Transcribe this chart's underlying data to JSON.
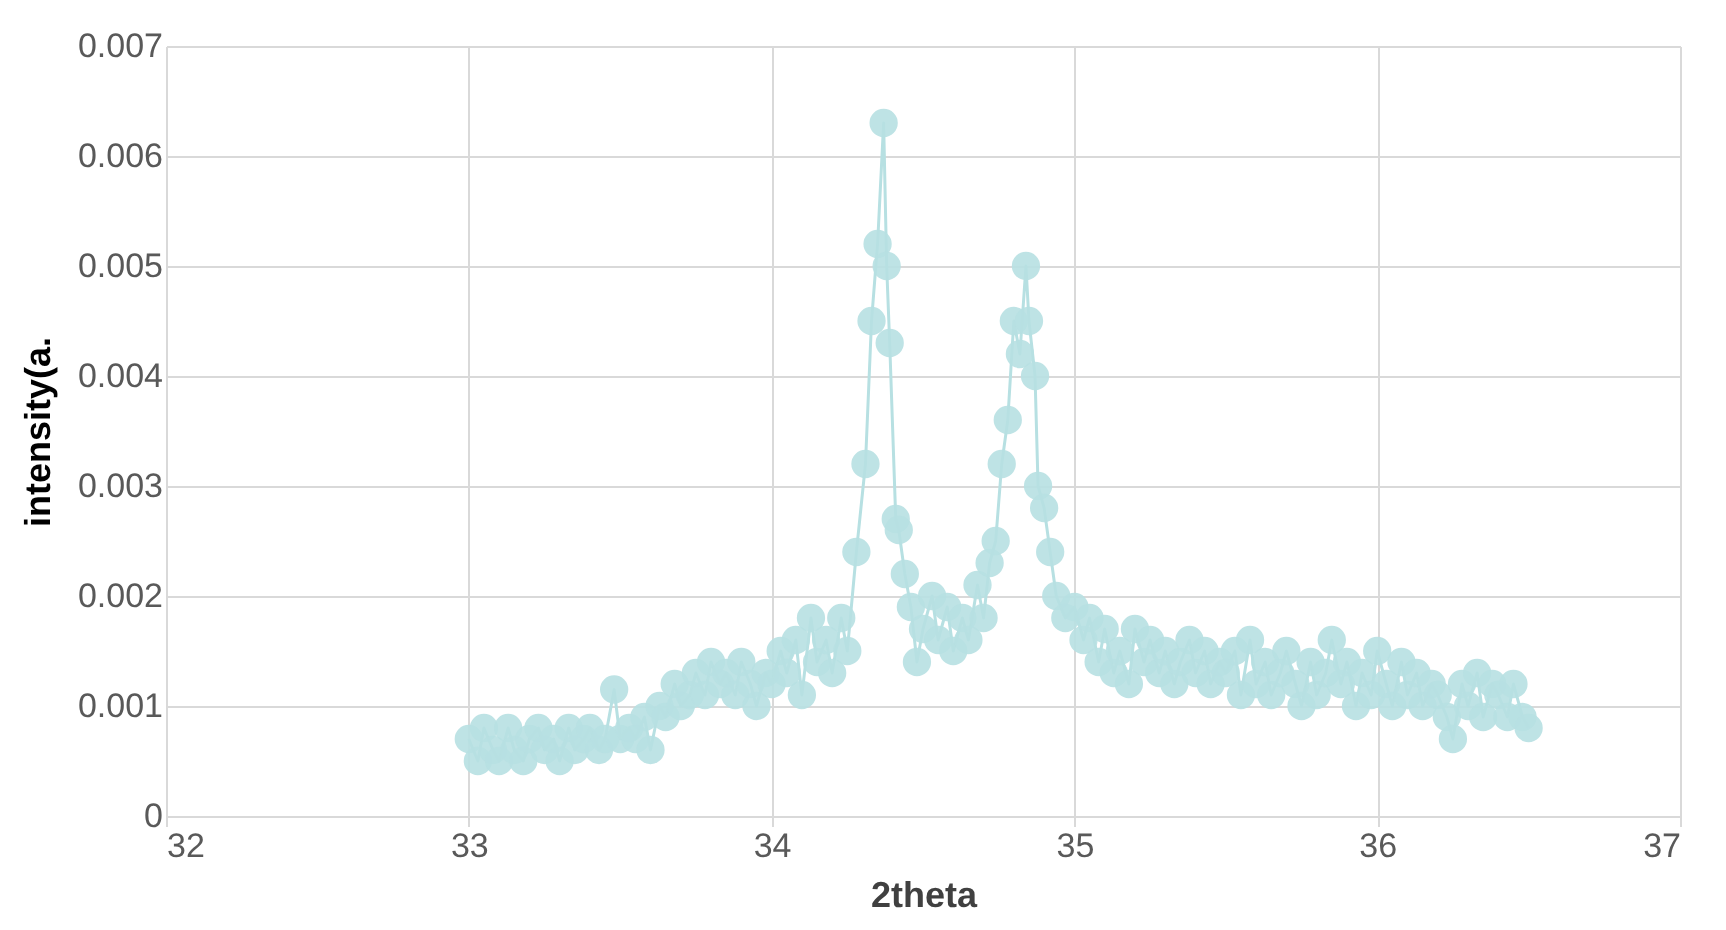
{
  "chart_data": {
    "type": "line",
    "xlabel": "2theta",
    "ylabel": "intensity(a.",
    "xlim": [
      32,
      37
    ],
    "xticks": [
      32,
      33,
      34,
      35,
      36,
      37
    ],
    "ylim": [
      0,
      0.007
    ],
    "yticks": [
      0,
      0.001,
      0.002,
      0.003,
      0.004,
      0.005,
      0.006,
      0.007
    ],
    "grid": true,
    "marker": "circle",
    "series": [
      {
        "color": "#b7e0e2",
        "x": [
          33.0,
          33.03,
          33.05,
          33.08,
          33.1,
          33.13,
          33.15,
          33.18,
          33.2,
          33.23,
          33.25,
          33.28,
          33.3,
          33.33,
          33.35,
          33.38,
          33.4,
          33.43,
          33.45,
          33.48,
          33.5,
          33.53,
          33.55,
          33.58,
          33.6,
          33.63,
          33.65,
          33.68,
          33.7,
          33.73,
          33.75,
          33.78,
          33.8,
          33.83,
          33.85,
          33.88,
          33.9,
          33.93,
          33.95,
          33.98,
          34.0,
          34.03,
          34.05,
          34.08,
          34.1,
          34.13,
          34.15,
          34.18,
          34.2,
          34.23,
          34.25,
          34.28,
          34.31,
          34.33,
          34.35,
          34.37,
          34.38,
          34.39,
          34.41,
          34.42,
          34.44,
          34.46,
          34.48,
          34.5,
          34.53,
          34.55,
          34.58,
          34.6,
          34.63,
          34.65,
          34.68,
          34.7,
          34.72,
          34.74,
          34.76,
          34.78,
          34.8,
          34.82,
          34.84,
          34.85,
          34.87,
          34.88,
          34.9,
          34.92,
          34.94,
          34.97,
          35.0,
          35.03,
          35.05,
          35.08,
          35.1,
          35.13,
          35.15,
          35.18,
          35.2,
          35.23,
          35.25,
          35.28,
          35.3,
          35.33,
          35.35,
          35.38,
          35.4,
          35.43,
          35.45,
          35.48,
          35.5,
          35.53,
          35.55,
          35.58,
          35.6,
          35.63,
          35.65,
          35.68,
          35.7,
          35.73,
          35.75,
          35.78,
          35.8,
          35.83,
          35.85,
          35.88,
          35.9,
          35.93,
          35.95,
          35.98,
          36.0,
          36.03,
          36.05,
          36.08,
          36.1,
          36.13,
          36.15,
          36.18,
          36.2,
          36.23,
          36.25,
          36.28,
          36.3,
          36.33,
          36.35,
          36.38,
          36.4,
          36.43,
          36.45,
          36.48,
          36.5
        ],
        "values": [
          0.0007,
          0.0005,
          0.0008,
          0.0006,
          0.0005,
          0.0008,
          0.0006,
          0.0005,
          0.0007,
          0.0008,
          0.0006,
          0.0007,
          0.0005,
          0.0008,
          0.0006,
          0.0007,
          0.0008,
          0.0006,
          0.0007,
          0.00115,
          0.0007,
          0.0008,
          0.0007,
          0.0009,
          0.0006,
          0.001,
          0.0009,
          0.0012,
          0.001,
          0.0011,
          0.0013,
          0.0011,
          0.0014,
          0.0012,
          0.0013,
          0.0011,
          0.0014,
          0.0012,
          0.001,
          0.0013,
          0.0012,
          0.0015,
          0.0013,
          0.0016,
          0.0011,
          0.0018,
          0.0014,
          0.0016,
          0.0013,
          0.0018,
          0.0015,
          0.0024,
          0.0032,
          0.0045,
          0.0052,
          0.0063,
          0.005,
          0.0043,
          0.0027,
          0.0026,
          0.0022,
          0.0019,
          0.0014,
          0.0017,
          0.002,
          0.0016,
          0.0019,
          0.0015,
          0.0018,
          0.0016,
          0.0021,
          0.0018,
          0.0023,
          0.0025,
          0.0032,
          0.0036,
          0.0045,
          0.0042,
          0.005,
          0.0045,
          0.004,
          0.003,
          0.0028,
          0.0024,
          0.002,
          0.0018,
          0.0019,
          0.0016,
          0.0018,
          0.0014,
          0.0017,
          0.0013,
          0.0015,
          0.0012,
          0.0017,
          0.0014,
          0.0016,
          0.0013,
          0.0015,
          0.0012,
          0.0014,
          0.0016,
          0.0013,
          0.0015,
          0.0012,
          0.0014,
          0.0013,
          0.0015,
          0.0011,
          0.0016,
          0.0012,
          0.0014,
          0.0011,
          0.0013,
          0.0015,
          0.0012,
          0.001,
          0.0014,
          0.0011,
          0.0013,
          0.0016,
          0.0012,
          0.0014,
          0.001,
          0.0013,
          0.0011,
          0.0015,
          0.0012,
          0.001,
          0.0014,
          0.0011,
          0.0013,
          0.001,
          0.0012,
          0.0011,
          0.0009,
          0.0007,
          0.0012,
          0.001,
          0.0013,
          0.0009,
          0.0012,
          0.0011,
          0.0009,
          0.0012,
          0.0009,
          0.0008
        ]
      }
    ]
  }
}
